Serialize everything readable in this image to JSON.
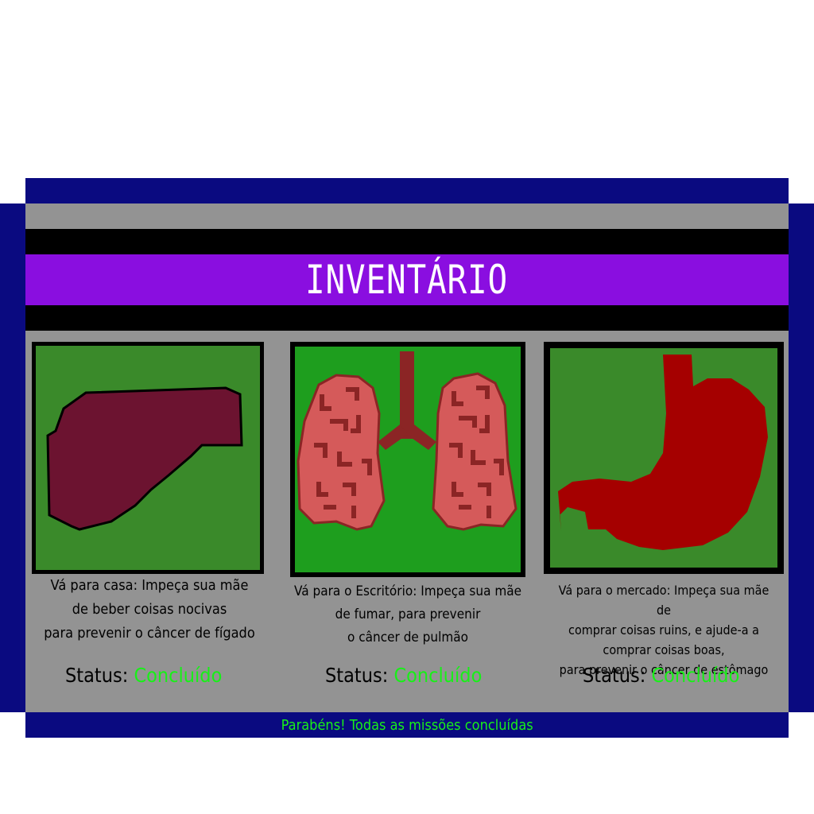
{
  "title": "INVENTÁRIO",
  "colors": {
    "navy": "#0a0a80",
    "gray": "#939393",
    "purple": "#8a0ee0",
    "status_green": "#18f018",
    "liver": "#6c1330",
    "lung": "#d55a5a",
    "stomach": "#a50000",
    "card_bg_dark": "#3a8a2a",
    "card_bg_bright": "#1e9e1e"
  },
  "missions": [
    {
      "icon": "liver-icon",
      "description": "Vá para casa: Impeça sua mãe\nde beber coisas nocivas\npara prevenir o câncer de fígado",
      "status_label": "Status:",
      "status_value": "Concluído"
    },
    {
      "icon": "lungs-icon",
      "description": "Vá para o Escritório: Impeça sua mãe\nde fumar, para prevenir\no câncer de pulmão",
      "status_label": "Status:",
      "status_value": "Concluído"
    },
    {
      "icon": "stomach-icon",
      "description": "Vá para o mercado: Impeça sua mãe de\ncomprar coisas ruins, e ajude-a a\ncomprar coisas boas,\npara prevenir o câncer de estômago",
      "status_label": "Status:",
      "status_value": "Concluído"
    }
  ],
  "footer": "Parabéns! Todas as missões concluídas"
}
